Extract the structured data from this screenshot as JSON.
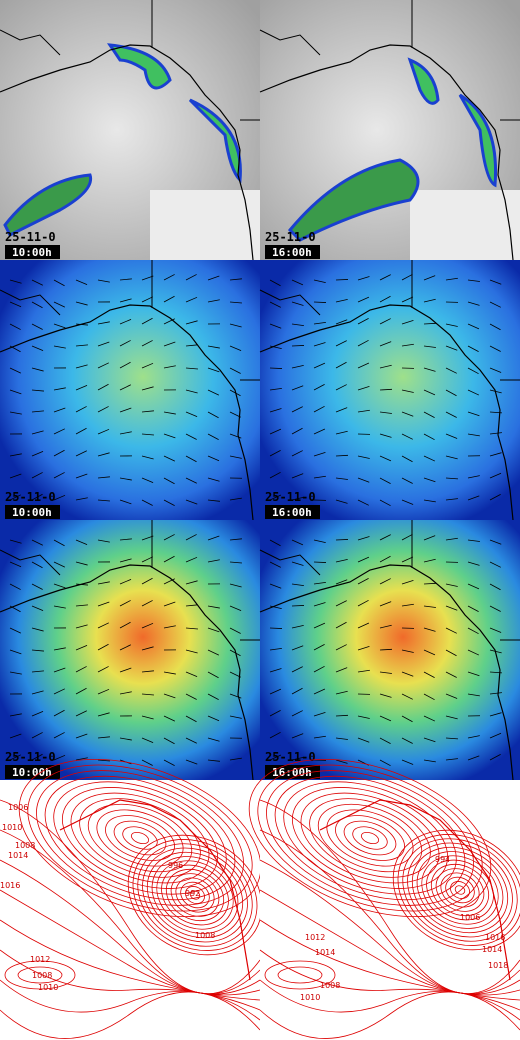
{
  "rows": [
    [
      {
        "date": "25-11-0",
        "time": "10:00h"
      },
      {
        "date": "25-11-0",
        "time": "16:00h"
      }
    ],
    [
      {
        "date": "25-11-0",
        "time": "10:00h"
      },
      {
        "date": "25-11-0",
        "time": "16:00h"
      }
    ],
    [
      {
        "date": "25-11-0",
        "time": "10:00h"
      },
      {
        "date": "25-11-0",
        "time": "16:00h"
      }
    ]
  ],
  "pressure_maps": [
    {
      "contour_labels": [
        "1006",
        "1010",
        "1008",
        "1014",
        "1016",
        "1008",
        "1012",
        "1008",
        "1010",
        "996",
        "992"
      ]
    },
    {
      "contour_labels": [
        "1012",
        "1014",
        "1008",
        "1010",
        "1016",
        "1014",
        "1018",
        "1006",
        "994"
      ]
    }
  ]
}
